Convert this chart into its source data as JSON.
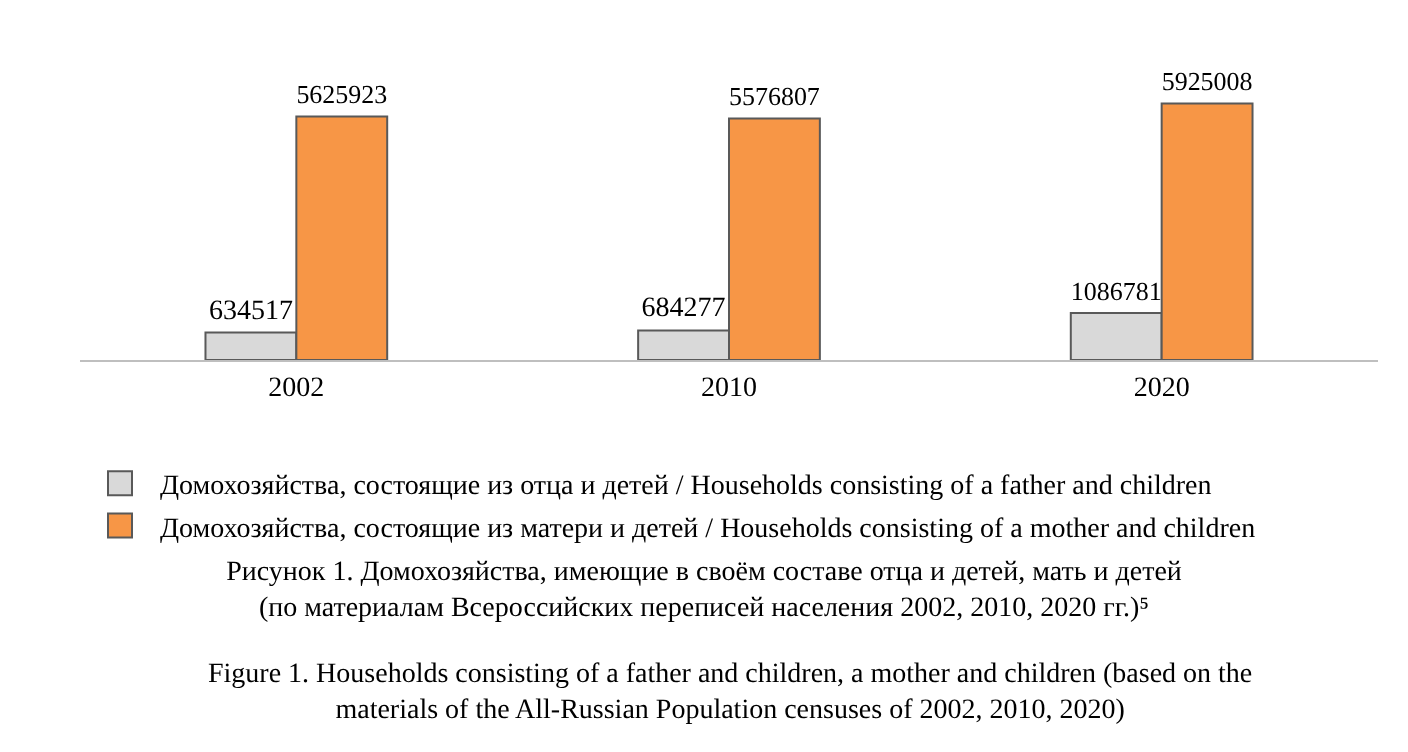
{
  "chart_data": {
    "type": "bar",
    "title": "Рисунок 1. Домохозяйства, имеющие в своём составе отца и детей, мать и детей\n(по материалам Всероссийских переписей населения 2002, 2010, 2020 гг.)⁵",
    "annotations": [
      "Figure 1. Households consisting of a father and children, a mother and children (based on the\nmaterials of the All-Russian Population censuses of 2002, 2010, 2020)"
    ],
    "categories": [
      "2002",
      "2010",
      "2020"
    ],
    "series": [
      {
        "name": "Домохозяйства, состоящие из отца и детей / Households consisting of a father and children",
        "color": "#d9d9d9",
        "values": [
          634517,
          684277,
          1086781
        ]
      },
      {
        "name": "Домохозяйства, состоящие из матери и детей / Households consisting of a mother and children",
        "color": "#f79646",
        "values": [
          5625923,
          5576807,
          5925008
        ]
      }
    ],
    "data_labels": true,
    "legend": "bottom",
    "grid": false
  }
}
